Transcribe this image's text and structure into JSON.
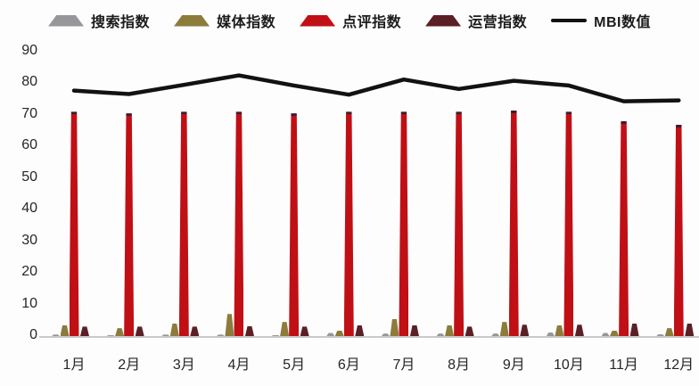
{
  "legend": [
    {
      "label": "搜索指数",
      "marker": "trapezoid",
      "color": "#97979b"
    },
    {
      "label": "媒体指数",
      "marker": "trapezoid",
      "color": "#8d7b3c"
    },
    {
      "label": "点评指数",
      "marker": "trapezoid",
      "color": "#c01015"
    },
    {
      "label": "运营指数",
      "marker": "trapezoid",
      "color": "#5a2026"
    },
    {
      "label": "MBI数值",
      "marker": "line",
      "color": "#121212"
    }
  ],
  "chart_data": {
    "type": "bar",
    "categories": [
      "1月",
      "2月",
      "3月",
      "4月",
      "5月",
      "6月",
      "7月",
      "8月",
      "9月",
      "10月",
      "11月",
      "12月"
    ],
    "series": [
      {
        "name": "搜索指数",
        "type": "bar",
        "color": "#97979b",
        "values": [
          0.5,
          0.4,
          0.5,
          0.5,
          0.4,
          1.0,
          0.8,
          0.8,
          0.8,
          1.2,
          1.0,
          0.6
        ]
      },
      {
        "name": "媒体指数",
        "type": "bar",
        "color": "#8d7b3c",
        "values": [
          3.5,
          2.5,
          4.0,
          7.0,
          4.5,
          1.8,
          5.5,
          3.5,
          4.5,
          3.5,
          1.8,
          2.5
        ]
      },
      {
        "name": "点评指数",
        "type": "bar",
        "color": "#c01015",
        "values": [
          71,
          70.5,
          71,
          71,
          70.5,
          71,
          71,
          71,
          71.5,
          71,
          68,
          67
        ]
      },
      {
        "name": "运营指数",
        "type": "bar",
        "color": "#5a2026",
        "values": [
          3.0,
          3.0,
          3.0,
          3.2,
          3.0,
          3.4,
          3.5,
          3.0,
          3.6,
          3.6,
          4.0,
          4.0
        ]
      },
      {
        "name": "MBI数值",
        "type": "line",
        "color": "#121212",
        "values": [
          77.7,
          76.6,
          79.5,
          82.5,
          79.3,
          76.4,
          81.2,
          78.2,
          80.8,
          79.3,
          74.3,
          74.6
        ]
      }
    ],
    "ylim": [
      0,
      90
    ],
    "yticks": [
      0,
      10,
      20,
      30,
      40,
      50,
      60,
      70,
      80,
      90
    ],
    "grid": false,
    "legend_position": "top"
  }
}
